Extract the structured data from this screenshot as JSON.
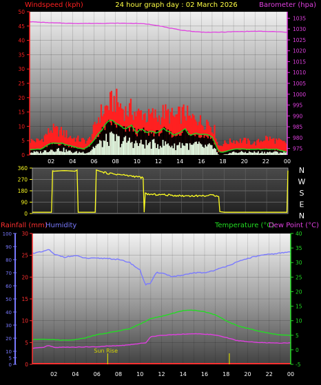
{
  "header": {
    "windspeed_label": "Windspeed (kph)",
    "title": "24 hour graph day : 02 March 2026",
    "barometer_label": "Barometer (hpa)"
  },
  "colors": {
    "windspeed": "#ff2020",
    "barometer": "#e040e0",
    "wind_avg": "#22cc22",
    "gust_fill": "#ffffff",
    "direction": "#ffff22",
    "rainfall": "#ff3030",
    "humidity": "#7a7aff",
    "temperature": "#22dd22",
    "dewpoint": "#e040e0",
    "sun_marker": "#d6d600"
  },
  "chart_data": [
    {
      "type": "line",
      "name": "wind-barometer",
      "x_ticks": [
        "02",
        "04",
        "06",
        "08",
        "10",
        "12",
        "14",
        "16",
        "18",
        "20",
        "22",
        "00"
      ],
      "left_axis": {
        "label": "Windspeed (kph)",
        "range": [
          0,
          50
        ],
        "ticks": [
          0,
          5,
          10,
          15,
          20,
          25,
          30,
          35,
          40,
          45,
          50
        ]
      },
      "right_axis": {
        "label": "Barometer (hpa)",
        "range": [
          972,
          1038
        ],
        "ticks": [
          975,
          980,
          985,
          990,
          995,
          1000,
          1005,
          1010,
          1015,
          1020,
          1025,
          1030,
          1035
        ]
      },
      "series": [
        {
          "name": "Barometer (hpa)",
          "axis": "right",
          "x": [
            0,
            2,
            4,
            6,
            8,
            10,
            11,
            12,
            13,
            14,
            15,
            16,
            17,
            18,
            19,
            20,
            21,
            22,
            23,
            24
          ],
          "values": [
            1033.4,
            1032.9,
            1032.6,
            1032.6,
            1032.7,
            1032.6,
            1032.3,
            1031.6,
            1030.5,
            1029.6,
            1029.0,
            1028.6,
            1028.5,
            1028.6,
            1028.8,
            1028.9,
            1029.0,
            1028.9,
            1028.8,
            1028.5
          ]
        }
      ],
      "wind_x": [
        0,
        1,
        2,
        3,
        4,
        5,
        5.5,
        6,
        6.5,
        7,
        7.5,
        8,
        8.5,
        9,
        9.5,
        10,
        10.5,
        11,
        11.5,
        12,
        12.5,
        13,
        13.5,
        14,
        14.5,
        15,
        15.5,
        16,
        16.5,
        17,
        17.3,
        17.6,
        18,
        19,
        20,
        21,
        22,
        23,
        24
      ],
      "wind_gust": [
        5,
        5,
        9,
        8,
        6,
        5,
        5,
        9,
        14,
        16,
        18,
        19,
        17,
        15,
        16,
        14,
        15,
        13,
        14,
        13,
        15,
        14,
        13,
        14,
        15,
        12,
        14,
        11,
        12,
        10,
        8,
        3,
        4,
        5,
        5,
        4,
        6,
        5,
        4
      ],
      "wind_avg": [
        2,
        2,
        4,
        4,
        3,
        2,
        3,
        5,
        8,
        10,
        12,
        11,
        10,
        9,
        10,
        8,
        9,
        8,
        8,
        8,
        9,
        8,
        7,
        8,
        9,
        7,
        8,
        7,
        7,
        6,
        4,
        1,
        1,
        2,
        2,
        2,
        2,
        2,
        1
      ],
      "wind_calm": [
        1,
        1,
        2,
        2,
        1,
        1,
        1,
        3,
        4,
        5,
        6,
        6,
        5,
        5,
        5,
        4,
        4,
        4,
        4,
        4,
        4,
        4,
        3,
        4,
        4,
        3,
        4,
        3,
        3,
        3,
        2,
        0,
        0,
        1,
        1,
        1,
        1,
        1,
        1
      ]
    },
    {
      "type": "line",
      "name": "wind-direction",
      "x_ticks": [
        "02",
        "04",
        "06",
        "08",
        "10",
        "12",
        "14",
        "16",
        "18",
        "20",
        "22",
        "00"
      ],
      "left_axis": {
        "range": [
          0,
          360
        ],
        "ticks": [
          0,
          90,
          180,
          270,
          360
        ]
      },
      "compass": [
        "N",
        "W",
        "S",
        "E",
        "N"
      ],
      "series": [
        {
          "name": "Wind direction",
          "x": [
            0,
            1.8,
            1.85,
            2,
            3,
            4,
            4.2,
            4.25,
            5,
            5.9,
            6,
            6.5,
            7,
            8,
            9,
            10,
            10.4,
            10.5,
            10.6,
            11,
            12,
            13,
            14,
            15,
            16,
            17,
            17.5,
            17.6,
            18,
            19,
            20,
            21,
            22,
            23,
            23.9,
            24
          ],
          "values": [
            10,
            10,
            340,
            335,
            340,
            335,
            345,
            10,
            10,
            10,
            345,
            330,
            320,
            310,
            300,
            290,
            280,
            10,
            160,
            150,
            150,
            145,
            140,
            140,
            140,
            145,
            140,
            15,
            10,
            10,
            10,
            10,
            10,
            10,
            10,
            340
          ]
        }
      ]
    },
    {
      "type": "line",
      "name": "rain-humidity-temperature",
      "x_ticks": [
        "02",
        "04",
        "06",
        "08",
        "10",
        "12",
        "14",
        "16",
        "18",
        "20",
        "22",
        "00"
      ],
      "header": {
        "rainfall_label": "Rainfall (mm)",
        "humidity_label": "Humidity",
        "temperature_label": "Temperature (°C)",
        "dewpoint_label": "Dew Point (°C)"
      },
      "humidity_axis": {
        "range": [
          0,
          100
        ],
        "ticks": [
          0,
          5,
          10,
          20,
          30,
          40,
          50,
          60,
          70,
          80,
          90,
          100
        ]
      },
      "rain_axis": {
        "range": [
          0,
          30
        ],
        "ticks": [
          0,
          5,
          10,
          15,
          20,
          25,
          30
        ]
      },
      "temp_axis": {
        "range": [
          -5,
          40
        ],
        "ticks": [
          -5,
          0,
          5,
          10,
          15,
          20,
          25,
          30,
          35,
          40
        ]
      },
      "annotation": "Sun Rise",
      "sun_marker_hours": [
        7,
        18.3
      ],
      "series": [
        {
          "name": "Humidity",
          "axis": "humidity",
          "x": [
            0,
            1,
            1.5,
            2,
            3,
            4,
            5,
            6,
            7,
            8,
            9,
            10,
            10.5,
            11,
            11.5,
            12,
            13,
            14,
            15,
            16,
            17,
            18,
            19,
            20,
            21,
            22,
            23,
            24
          ],
          "values": [
            85,
            86,
            88,
            84,
            82,
            83,
            81,
            81,
            81,
            80,
            78,
            72,
            61,
            62,
            70,
            70,
            67,
            68,
            70,
            70,
            72,
            75,
            78,
            81,
            83,
            84,
            85,
            86
          ]
        },
        {
          "name": "Temperature (°C)",
          "axis": "temp",
          "x": [
            0,
            1,
            2,
            3,
            4,
            5,
            6,
            7,
            8,
            9,
            10,
            11,
            12,
            13,
            14,
            15,
            16,
            17,
            18,
            19,
            20,
            21,
            22,
            23,
            24
          ],
          "values": [
            3.5,
            3.7,
            3.5,
            3.3,
            3.5,
            4.2,
            5.2,
            5.8,
            6.5,
            7.2,
            8.8,
            10.8,
            11.5,
            12.5,
            13.5,
            13.6,
            13.1,
            12.0,
            10.0,
            8.3,
            7.4,
            6.4,
            5.7,
            5.1,
            5.0
          ]
        },
        {
          "name": "Dew Point (°C)",
          "axis": "temp",
          "x": [
            0,
            1,
            1.5,
            2,
            3,
            4,
            5,
            6,
            7,
            8,
            9,
            10,
            10.5,
            11,
            12,
            13,
            14,
            15,
            16,
            17,
            18,
            19,
            20,
            21,
            22,
            23,
            24
          ],
          "values": [
            0.5,
            0.8,
            1.5,
            0.8,
            0.9,
            0.9,
            1.0,
            1.0,
            1.3,
            1.4,
            1.7,
            2.2,
            2.3,
            4.5,
            5.0,
            5.2,
            5.4,
            5.5,
            5.4,
            5.1,
            4.2,
            3.2,
            2.8,
            2.5,
            2.4,
            2.3,
            2.4
          ]
        },
        {
          "name": "Rainfall (mm)",
          "axis": "rain",
          "x": [
            0,
            24
          ],
          "values": [
            0,
            0
          ]
        }
      ]
    }
  ]
}
